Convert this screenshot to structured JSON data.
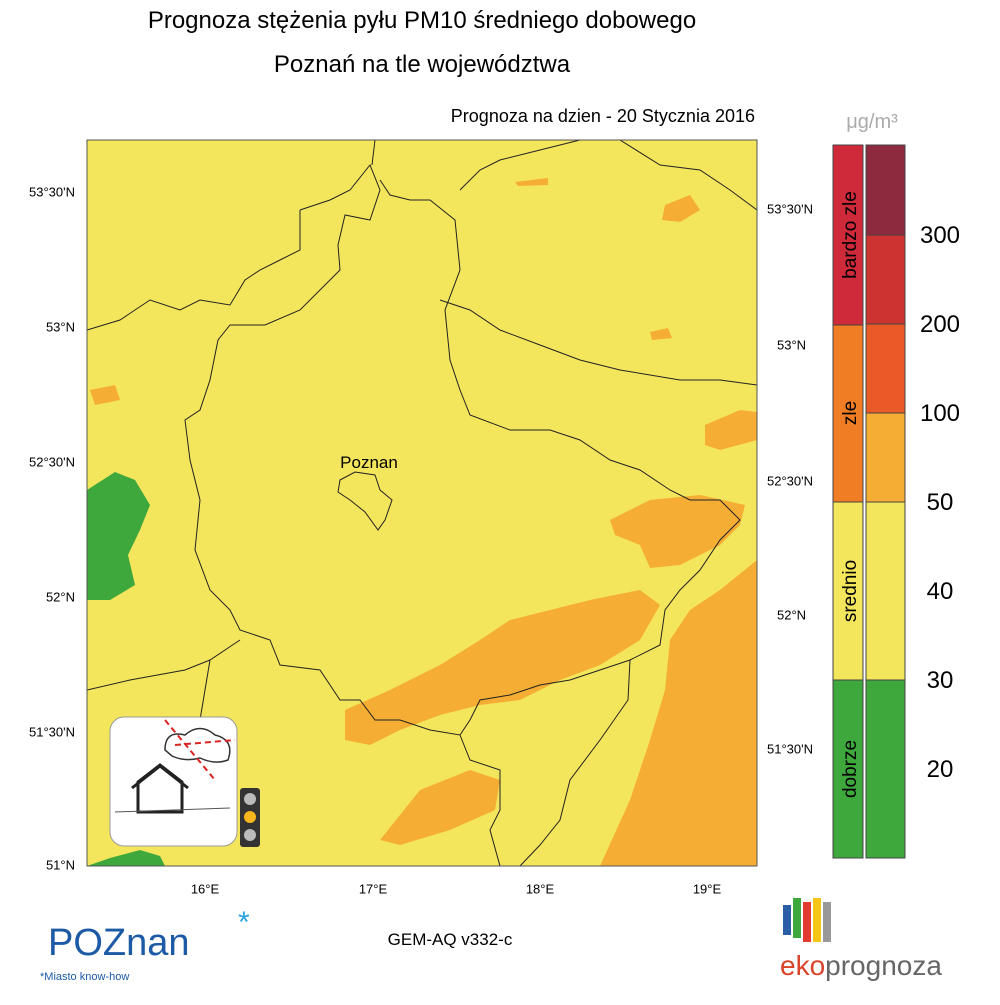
{
  "header": {
    "title_line1": "Prognoza stężenia pyłu PM10 średniego dobowego",
    "title_line2": "Poznań na tle województwa",
    "forecast_date": "Prognoza na dzien -  20 Stycznia 2016"
  },
  "map": {
    "lat_labels_left": [
      "53°30'N",
      "53°N",
      "52°30'N",
      "52°N",
      "51°30'N",
      "51°N"
    ],
    "lat_labels_right": [
      "53°30'N",
      "53°N",
      "52°30'N",
      "52°N",
      "51°30'N"
    ],
    "lon_labels": [
      "16°E",
      "17°E",
      "18°E",
      "19°E"
    ],
    "city": "Poznan"
  },
  "legend": {
    "unit": "μg/m³",
    "categories": [
      "bardzo zle",
      "zle",
      "srednio",
      "dobrze"
    ],
    "scale": [
      "300",
      "200",
      "100",
      "50",
      "40",
      "30",
      "20"
    ]
  },
  "footer": {
    "model": "GEM-AQ v332-c",
    "poznan_logo": "POZnan",
    "poznan_tagline": "*Miasto know-how",
    "eko": "eko",
    "prognoza": "prognoza"
  }
}
